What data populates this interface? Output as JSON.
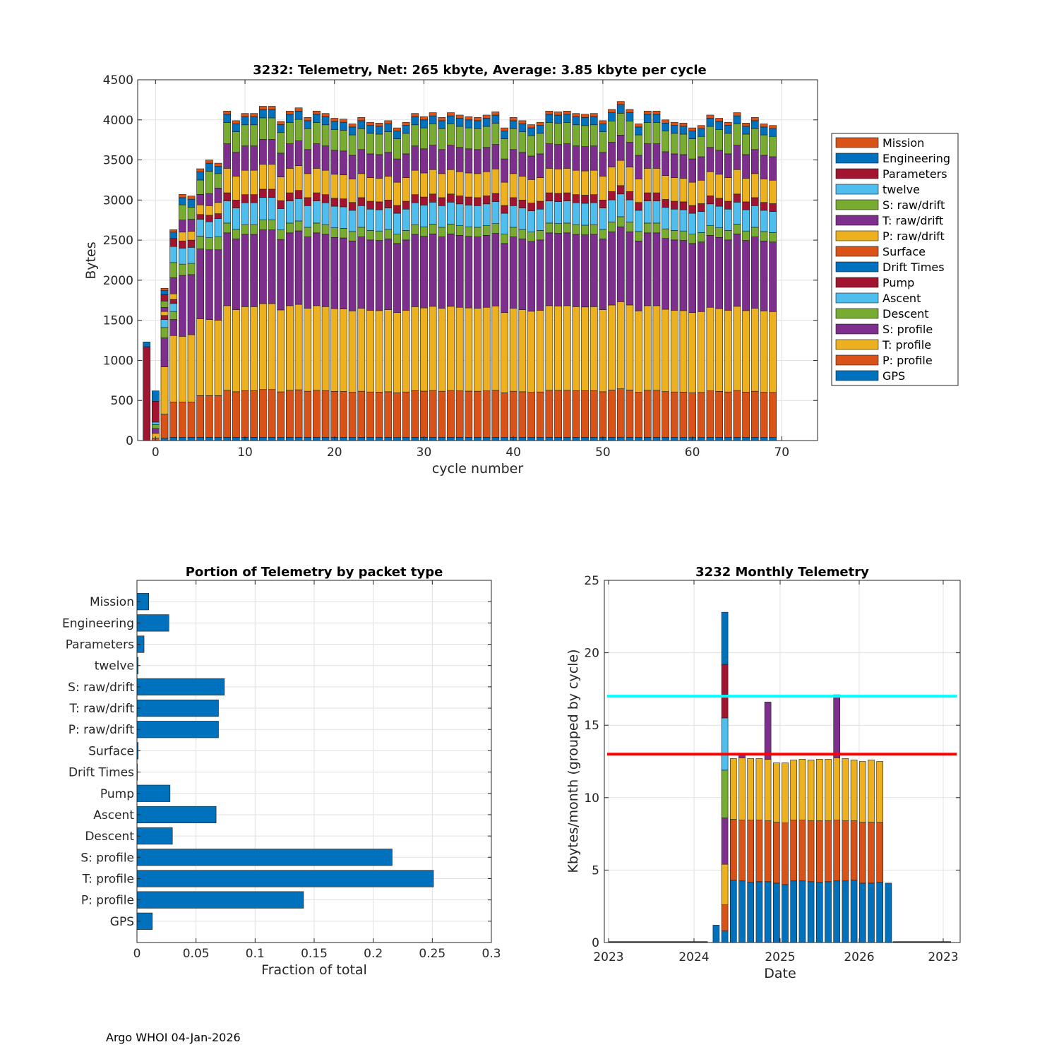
{
  "colors": {
    "blue": "#0072BD",
    "orange": "#D95319",
    "yellow": "#EDB120",
    "purple": "#7E2F8E",
    "green": "#77AC30",
    "lightblue": "#4DBEEE",
    "darkred": "#A2142F",
    "cyan_line": "#00FFFF",
    "red_line": "#FF0000"
  },
  "footer": {
    "text": "Argo WHOI 04-Jan-2026"
  },
  "chart_data": [
    {
      "id": "top",
      "type": "bar",
      "stacked": true,
      "title": "3232: Telemetry, Net:    265 kbyte,  Average: 3.85 kbyte per cycle",
      "xlabel": "cycle number",
      "ylabel": "Bytes",
      "xlim": [
        -2,
        74
      ],
      "ylim": [
        0,
        4500
      ],
      "xticks": [
        0,
        10,
        20,
        30,
        40,
        50,
        60,
        70
      ],
      "yticks": [
        0,
        500,
        1000,
        1500,
        2000,
        2500,
        3000,
        3500,
        4000,
        4500
      ],
      "grid": true,
      "legend": {
        "placement": "right",
        "entries": [
          {
            "name": "Mission",
            "color": "#D95319"
          },
          {
            "name": "Engineering",
            "color": "#0072BD"
          },
          {
            "name": "Parameters",
            "color": "#A2142F"
          },
          {
            "name": "twelve",
            "color": "#4DBEEE"
          },
          {
            "name": "S: raw/drift",
            "color": "#77AC30"
          },
          {
            "name": "T: raw/drift",
            "color": "#7E2F8E"
          },
          {
            "name": "P: raw/drift",
            "color": "#EDB120"
          },
          {
            "name": "Surface",
            "color": "#D95319"
          },
          {
            "name": "Drift Times",
            "color": "#0072BD"
          },
          {
            "name": "Pump",
            "color": "#A2142F"
          },
          {
            "name": "Ascent",
            "color": "#4DBEEE"
          },
          {
            "name": "Descent",
            "color": "#77AC30"
          },
          {
            "name": "S: profile",
            "color": "#7E2F8E"
          },
          {
            "name": "T: profile",
            "color": "#EDB120"
          },
          {
            "name": "P: profile",
            "color": "#D95319"
          },
          {
            "name": "GPS",
            "color": "#0072BD"
          }
        ]
      },
      "stack_order": [
        "GPS",
        "P: profile",
        "T: profile",
        "S: profile",
        "Descent",
        "Ascent",
        "Pump",
        "Drift Times",
        "Surface",
        "P: raw/drift",
        "T: raw/drift",
        "S: raw/drift",
        "twelve",
        "Parameters",
        "Engineering",
        "Mission"
      ],
      "stack_colors": [
        "#0072BD",
        "#D95319",
        "#EDB120",
        "#7E2F8E",
        "#77AC30",
        "#4DBEEE",
        "#A2142F",
        "#0072BD",
        "#D95319",
        "#EDB120",
        "#7E2F8E",
        "#77AC30",
        "#4DBEEE",
        "#A2142F",
        "#0072BD",
        "#D95319"
      ],
      "typical_cycle_segments": [
        40,
        575,
        1035,
        890,
        120,
        270,
        100,
        0,
        0,
        300,
        300,
        260,
        0,
        0,
        100,
        40
      ],
      "special_cycles": [
        {
          "x": -1,
          "segments": [
            0,
            0,
            0,
            0,
            0,
            0,
            0,
            0,
            0,
            0,
            0,
            0,
            0,
            1170,
            60,
            0
          ]
        },
        {
          "x": 0,
          "segments": [
            0,
            30,
            60,
            0,
            0,
            0,
            0,
            0,
            0,
            0,
            60,
            50,
            30,
            260,
            130,
            0
          ]
        },
        {
          "x": 1,
          "segments": [
            30,
            300,
            590,
            360,
            130,
            100,
            50,
            0,
            0,
            50,
            50,
            80,
            0,
            80,
            50,
            30
          ]
        },
        {
          "x": 2,
          "segments": [
            40,
            440,
            830,
            200,
            100,
            100,
            50,
            0,
            0,
            70,
            200,
            190,
            200,
            100,
            80,
            30
          ]
        },
        {
          "x": 3,
          "segments": [
            40,
            440,
            820,
            760,
            140,
            200,
            90,
            0,
            0,
            110,
            150,
            190,
            0,
            0,
            90,
            40
          ]
        },
        {
          "x": 4,
          "segments": [
            40,
            440,
            840,
            750,
            140,
            200,
            90,
            0,
            0,
            110,
            150,
            150,
            0,
            0,
            100,
            40
          ]
        },
        {
          "x": 5,
          "segments": [
            40,
            520,
            960,
            870,
            160,
            210,
            60,
            0,
            0,
            120,
            130,
            180,
            0,
            0,
            100,
            40
          ]
        },
        {
          "x": 6,
          "segments": [
            40,
            520,
            950,
            870,
            150,
            200,
            80,
            0,
            0,
            120,
            150,
            280,
            0,
            0,
            100,
            40
          ]
        },
        {
          "x": 7,
          "segments": [
            40,
            520,
            940,
            880,
            160,
            230,
            60,
            0,
            0,
            140,
            180,
            180,
            0,
            0,
            90,
            40
          ]
        }
      ],
      "totals_cycles_8_to_67": [
        4110,
        3990,
        4080,
        4080,
        4170,
        4170,
        3980,
        4110,
        4150,
        4030,
        4110,
        4080,
        4020,
        4010,
        3950,
        4030,
        3970,
        3960,
        3990,
        3900,
        3970,
        4080,
        4040,
        4090,
        4030,
        4090,
        4060,
        4040,
        4030,
        4060,
        4100,
        3900,
        4030,
        3990,
        3940,
        3970,
        4110,
        4100,
        4110,
        4080,
        4070,
        4080,
        3990,
        4130,
        4230,
        4130,
        3950,
        4110,
        4110,
        4000,
        3970,
        3960,
        3900,
        3930,
        4060,
        4020,
        3970,
        4090,
        3960,
        4030,
        3950,
        3930
      ]
    },
    {
      "id": "bottom-left",
      "type": "bar",
      "orientation": "horizontal",
      "title": "Portion of Telemetry by packet type",
      "xlabel": "Fraction of total",
      "ylabel": "",
      "xlim": [
        0,
        0.3
      ],
      "xticks": [
        0,
        0.05,
        0.1,
        0.15,
        0.2,
        0.25,
        0.3
      ],
      "xtick_labels": [
        "0",
        "0.05",
        "0.1",
        "0.15",
        "0.2",
        "0.25",
        "0.3"
      ],
      "grid": true,
      "categories": [
        "Mission",
        "Engineering",
        "Parameters",
        "twelve",
        "S: raw/drift",
        "T: raw/drift",
        "P: raw/drift",
        "Surface",
        "Drift Times",
        "Pump",
        "Ascent",
        "Descent",
        "S: profile",
        "T: profile",
        "P: profile",
        "GPS"
      ],
      "values": [
        0.01,
        0.027,
        0.006,
        0.001,
        0.074,
        0.069,
        0.069,
        0.001,
        0.0,
        0.028,
        0.067,
        0.03,
        0.216,
        0.251,
        0.141,
        0.013
      ],
      "color": "#0072BD"
    },
    {
      "id": "bottom-right",
      "type": "bar",
      "stacked": true,
      "title": "3232 Monthly Telemetry",
      "xlabel": "Date",
      "ylabel": "Kbytes/month (grouped by cycle)",
      "ylim": [
        0,
        25
      ],
      "yticks": [
        0,
        5,
        10,
        15,
        20,
        25
      ],
      "xtick_labels": [
        "2023",
        "2024",
        "2025",
        "2026",
        "2023"
      ],
      "grid": true,
      "hlines": [
        {
          "y": 17,
          "color": "#00FFFF"
        },
        {
          "y": 13,
          "color": "#FF0000"
        }
      ],
      "months_span": 40,
      "zero_months_before": 12,
      "bars": [
        {
          "month": 12,
          "segments": [
            1.2
          ]
        },
        {
          "month": 13,
          "segments": [
            0.8,
            1.8,
            2.8,
            3.2,
            3.3,
            3.6,
            3.7,
            3.6
          ]
        },
        {
          "month": 14,
          "segments": [
            4.3,
            4.2,
            4.2
          ]
        },
        {
          "month": 15,
          "segments": [
            4.25,
            4.2,
            4.3,
            0.25
          ]
        },
        {
          "month": 16,
          "segments": [
            4.15,
            4.3,
            4.25
          ]
        },
        {
          "month": 17,
          "segments": [
            4.2,
            4.25,
            4.25
          ]
        },
        {
          "month": 18,
          "segments": [
            4.2,
            4.2,
            4.25,
            3.95
          ]
        },
        {
          "month": 19,
          "segments": [
            4.1,
            4.2,
            4.1
          ]
        },
        {
          "month": 20,
          "segments": [
            4.0,
            4.25,
            4.15
          ]
        },
        {
          "month": 21,
          "segments": [
            4.25,
            4.2,
            4.15
          ]
        },
        {
          "month": 22,
          "segments": [
            4.25,
            4.2,
            4.2
          ]
        },
        {
          "month": 23,
          "segments": [
            4.2,
            4.2,
            4.2
          ]
        },
        {
          "month": 24,
          "segments": [
            4.15,
            4.25,
            4.25
          ]
        },
        {
          "month": 25,
          "segments": [
            4.2,
            4.2,
            4.25
          ]
        },
        {
          "month": 26,
          "segments": [
            4.25,
            4.2,
            4.3,
            4.35
          ]
        },
        {
          "month": 27,
          "segments": [
            4.25,
            4.15,
            4.3
          ]
        },
        {
          "month": 28,
          "segments": [
            4.3,
            4.1,
            4.2
          ]
        },
        {
          "month": 29,
          "segments": [
            4.1,
            4.2,
            4.2
          ]
        },
        {
          "month": 30,
          "segments": [
            4.1,
            4.2,
            4.3
          ]
        },
        {
          "month": 31,
          "segments": [
            4.15,
            4.15,
            4.2
          ]
        },
        {
          "month": 32,
          "segments": [
            4.1
          ]
        }
      ],
      "segment_colors": [
        "#0072BD",
        "#D95319",
        "#EDB120",
        "#7E2F8E",
        "#77AC30",
        "#4DBEEE",
        "#A2142F",
        "#0072BD"
      ]
    }
  ]
}
